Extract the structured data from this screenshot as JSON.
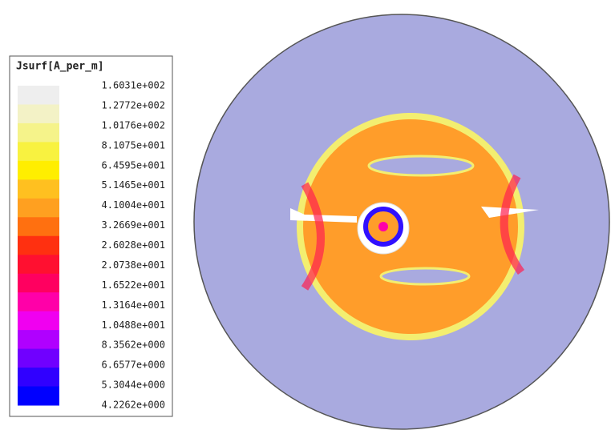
{
  "legend": {
    "title": "Jsurf[A_per_m]",
    "levels": [
      {
        "label": "1.6031e+002",
        "color": "#eeeeee"
      },
      {
        "label": "1.2772e+002",
        "color": "#f3f2c6"
      },
      {
        "label": "1.0176e+002",
        "color": "#f5f38a"
      },
      {
        "label": "8.1075e+001",
        "color": "#f8f240"
      },
      {
        "label": "6.4595e+001",
        "color": "#ffee00"
      },
      {
        "label": "5.1465e+001",
        "color": "#ffc020"
      },
      {
        "label": "4.1004e+001",
        "color": "#ffa020"
      },
      {
        "label": "3.2669e+001",
        "color": "#ff7010"
      },
      {
        "label": "2.6028e+001",
        "color": "#ff3010"
      },
      {
        "label": "2.0738e+001",
        "color": "#ff1030"
      },
      {
        "label": "1.6522e+001",
        "color": "#ff0060"
      },
      {
        "label": "1.3164e+001",
        "color": "#ff00a8"
      },
      {
        "label": "1.0488e+001",
        "color": "#f000f0"
      },
      {
        "label": "8.3562e+000",
        "color": "#b000ff"
      },
      {
        "label": "6.6577e+000",
        "color": "#7000ff"
      },
      {
        "label": "5.3044e+000",
        "color": "#3000ff"
      },
      {
        "label": "4.2262e+000",
        "color": "#0000ff"
      }
    ]
  }
}
